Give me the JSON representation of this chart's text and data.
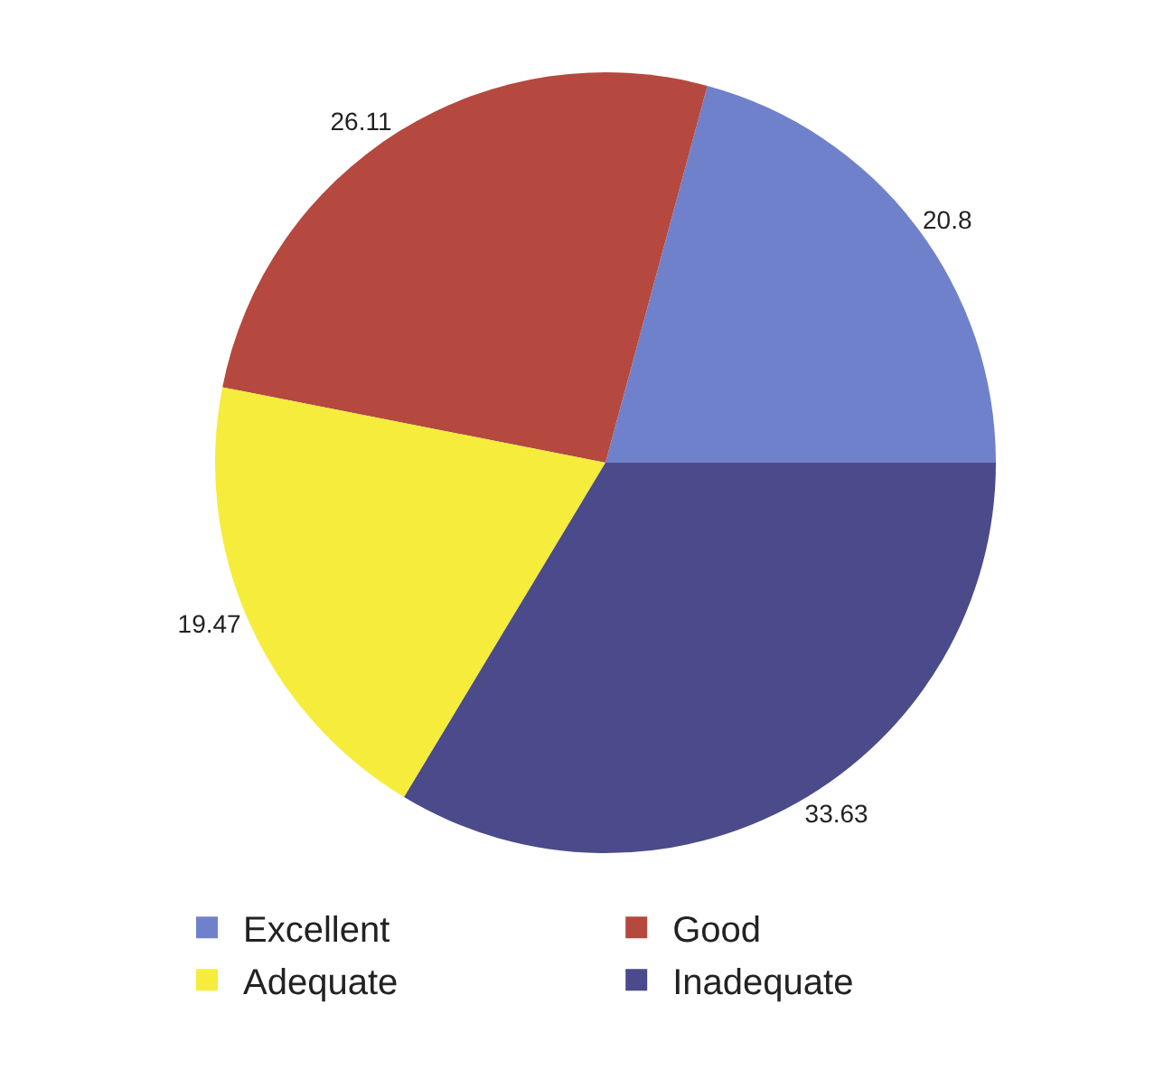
{
  "chart_data": {
    "type": "pie",
    "categories": [
      "Excellent",
      "Good",
      "Adequate",
      "Inadequate"
    ],
    "values": [
      20.8,
      26.11,
      19.47,
      33.63
    ],
    "colors": [
      "#7081cc",
      "#b5493f",
      "#f6ec3c",
      "#4b4a8a"
    ],
    "data_labels": true,
    "legend": "bottom"
  }
}
